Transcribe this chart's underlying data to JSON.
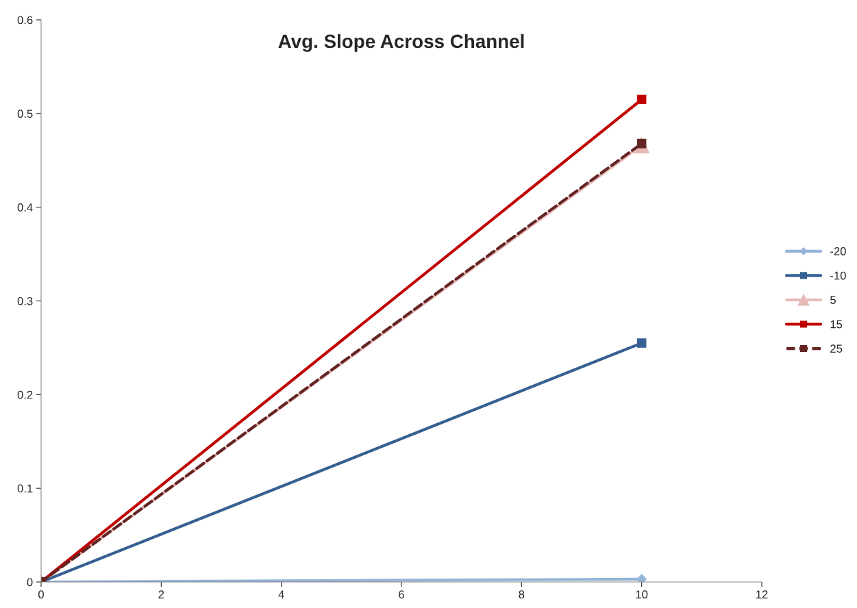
{
  "chart_data": {
    "type": "line",
    "title": "Avg. Slope Across Channel",
    "x": [
      0,
      10
    ],
    "series": [
      {
        "name": "-20",
        "color": "#95b3d7",
        "marker": "diamond",
        "values": [
          0,
          0.003
        ]
      },
      {
        "name": "-10",
        "color": "#366092",
        "marker": "square",
        "values": [
          0,
          0.255
        ]
      },
      {
        "name": "5",
        "color": "#e6b9b8",
        "marker": "triangle",
        "values": [
          0,
          0.466
        ]
      },
      {
        "name": "15",
        "color": "#c00000",
        "marker": "square",
        "values": [
          0,
          0.515
        ]
      },
      {
        "name": "25",
        "color": "#632523",
        "marker": "square",
        "line_style": "dashed",
        "values": [
          0,
          0.468
        ]
      }
    ],
    "xlim": [
      0,
      12
    ],
    "xticks": [
      0,
      2,
      4,
      6,
      8,
      10,
      12
    ],
    "ylim": [
      0,
      0.6
    ],
    "yticks": [
      0,
      0.1,
      0.2,
      0.3,
      0.4,
      0.5,
      0.6
    ],
    "grid": false,
    "legend": "right"
  }
}
